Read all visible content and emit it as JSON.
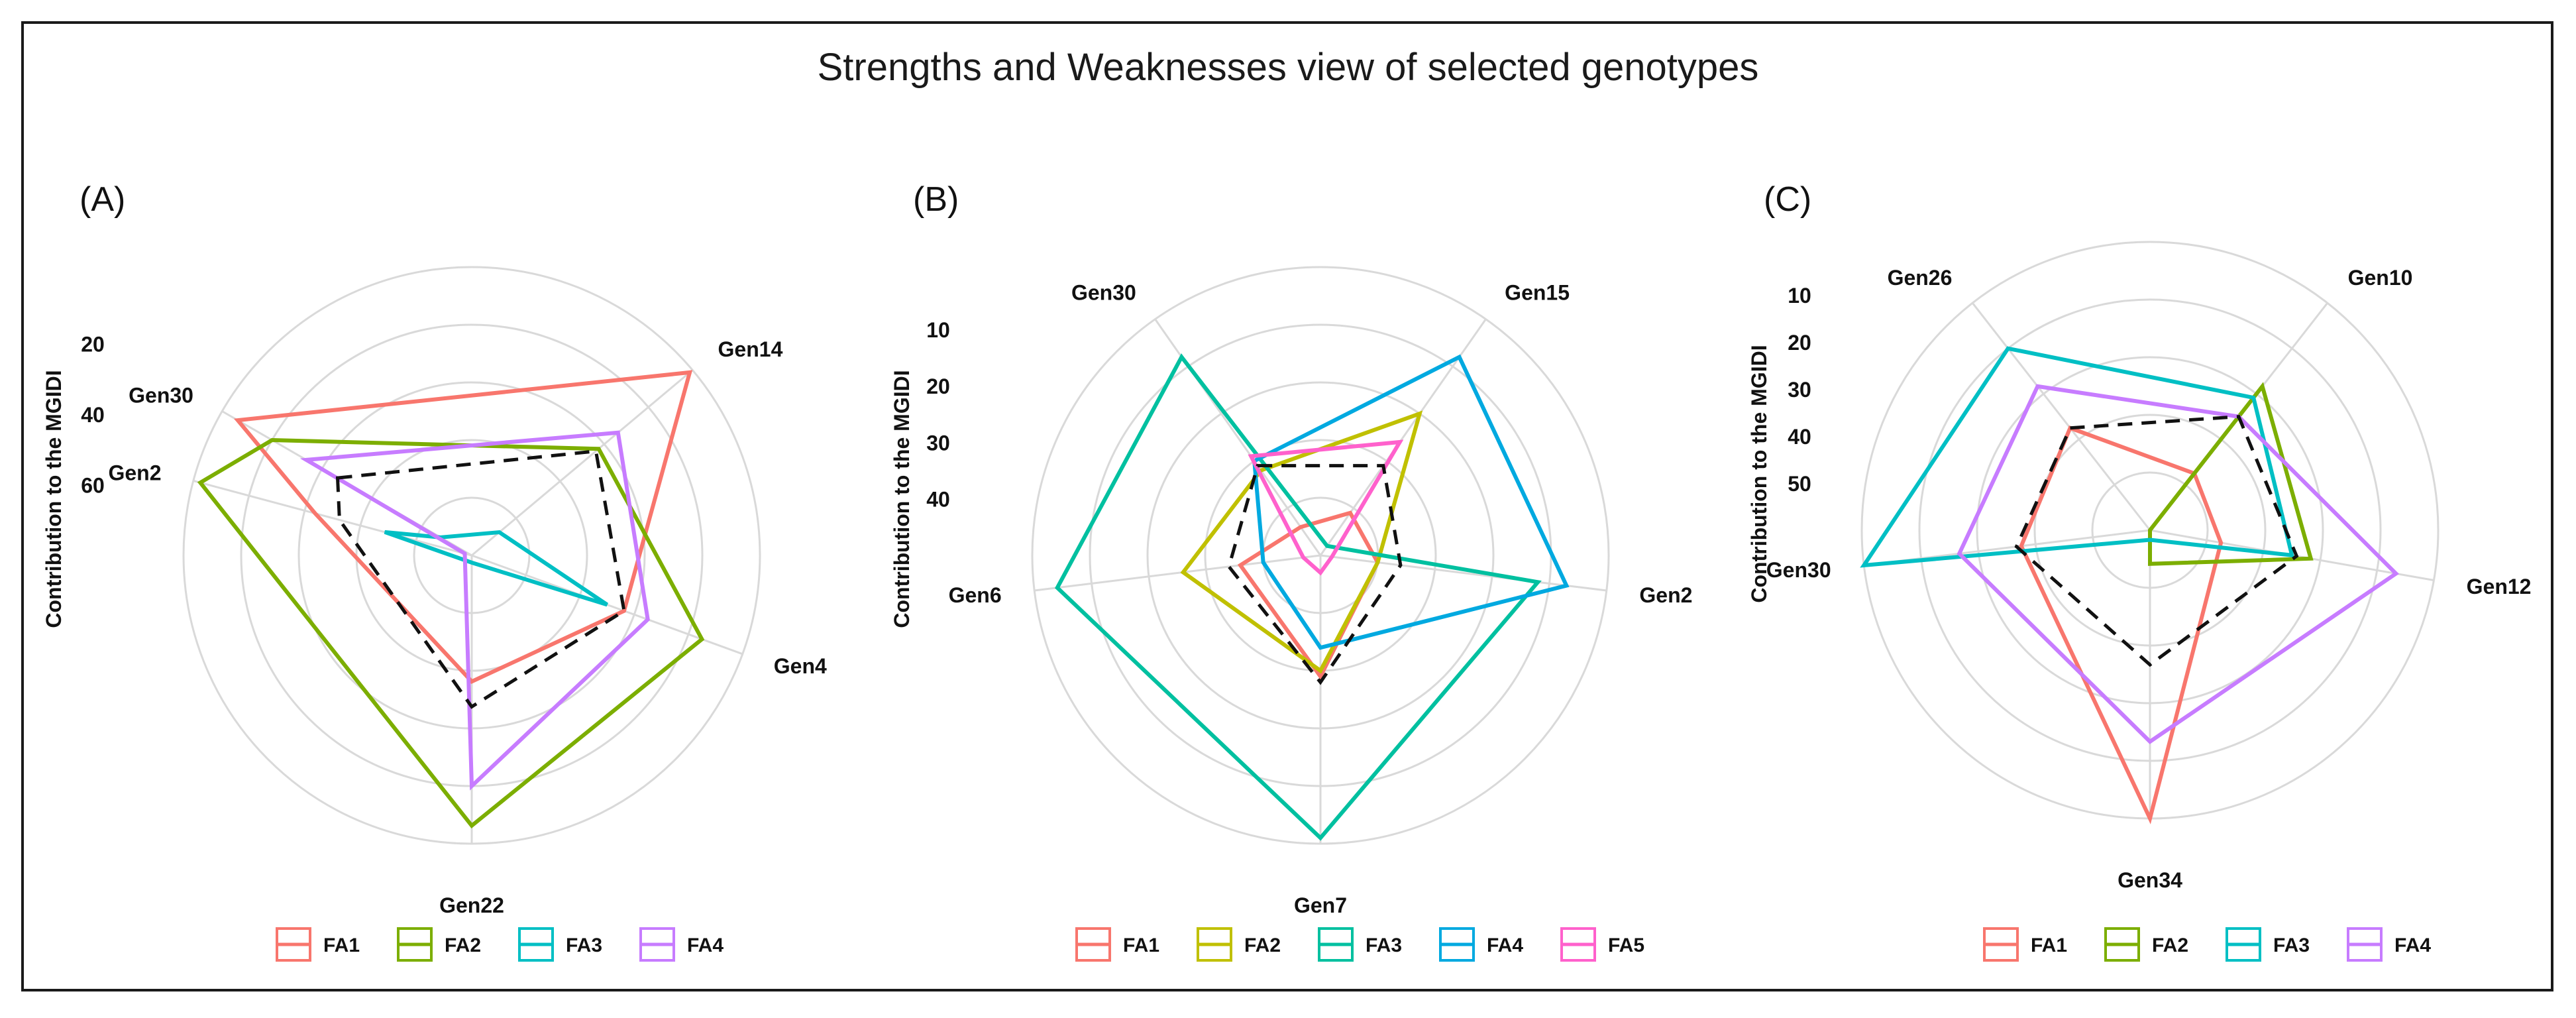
{
  "title": "Strengths and Weaknesses view of selected genotypes",
  "colors": {
    "FA1": "#F8766D",
    "FA2": "#7CAE00",
    "FA3": "#00BFC4",
    "FA4": "#C77CFF",
    "FA5": "#FF61CC",
    "B_FA2": "#C0C000",
    "B_FA3": "#00C0A0",
    "B_FA4": "#00A9E0",
    "mgidi": "#111111",
    "grid": "#d9d9d9"
  },
  "chart_data": [
    {
      "type": "radar",
      "panel_label": "(A)",
      "ylabel": "Contribution to the MGIDI",
      "axis_direction": "reversed (smaller value plotted further out)",
      "axis_ticks": [
        20,
        40,
        60
      ],
      "axes": [
        "Gen30",
        "Gen14",
        "Gen4",
        "Gen22",
        "Gen2"
      ],
      "series": [
        {
          "name": "FA1",
          "color": "#F8766D",
          "values": [
            5,
            1,
            35,
            45,
            35
          ]
        },
        {
          "name": "FA2",
          "color": "#7CAE00",
          "values": [
            16,
            34,
            12,
            5,
            2
          ]
        },
        {
          "name": "FA3",
          "color": "#00BFC4",
          "values": [
            70,
            70,
            40,
            78,
            55
          ]
        },
        {
          "name": "FA4",
          "color": "#C77CFF",
          "values": [
            27,
            27,
            28,
            16,
            78
          ]
        }
      ],
      "mgidi": [
        37,
        35,
        35,
        38,
        42
      ],
      "legend": [
        "FA1",
        "FA2",
        "FA3",
        "FA4"
      ]
    },
    {
      "type": "radar",
      "panel_label": "(B)",
      "ylabel": "Contribution to the MGIDI",
      "axis_direction": "reversed (smaller value plotted further out)",
      "axis_ticks": [
        10,
        20,
        30,
        40
      ],
      "axes": [
        "Gen30",
        "Gen15",
        "Gen2",
        "Gen7",
        "Gen6"
      ],
      "series": [
        {
          "name": "FA1",
          "color": "#F8766D",
          "values": [
            44,
            41,
            40,
            29,
            36
          ]
        },
        {
          "name": "FA2",
          "color": "#C0C000",
          "values": [
            32,
            20,
            40,
            30,
            26
          ]
        },
        {
          "name": "FA3",
          "color": "#00C0A0",
          "values": [
            8,
            48,
            12,
            1,
            4
          ]
        },
        {
          "name": "FA4",
          "color": "#00A9E0",
          "values": [
            30,
            8,
            7,
            34,
            40
          ]
        },
        {
          "name": "FA5",
          "color": "#FF61CC",
          "values": [
            29,
            26,
            48,
            47,
            47
          ]
        }
      ],
      "mgidi": [
        31,
        31,
        36,
        28,
        34
      ],
      "legend": [
        "FA1",
        "FA2",
        "FA3",
        "FA4",
        "FA5"
      ]
    },
    {
      "type": "radar",
      "panel_label": "(C)",
      "ylabel": "Contribution to the MGIDI",
      "axis_direction": "reversed (smaller value plotted further out)",
      "axis_ticks": [
        10,
        20,
        30,
        40,
        50
      ],
      "axes": [
        "Gen26",
        "Gen10",
        "Gen12",
        "Gen34",
        "Gen30"
      ],
      "series": [
        {
          "name": "FA1",
          "color": "#F8766D",
          "values": [
            33,
            45,
            45,
            0,
            33
          ]
        },
        {
          "name": "FA2",
          "color": "#7CAE00",
          "values": [
            62,
            22,
            26,
            53,
            62
          ]
        },
        {
          "name": "FA3",
          "color": "#00BFC4",
          "values": [
            12,
            25,
            30,
            58,
            0
          ]
        },
        {
          "name": "FA4",
          "color": "#C77CFF",
          "values": [
            22,
            30,
            8,
            16,
            20
          ]
        }
      ],
      "mgidi": [
        33,
        30,
        29,
        32,
        32
      ],
      "legend": [
        "FA1",
        "FA2",
        "FA3",
        "FA4"
      ]
    }
  ]
}
